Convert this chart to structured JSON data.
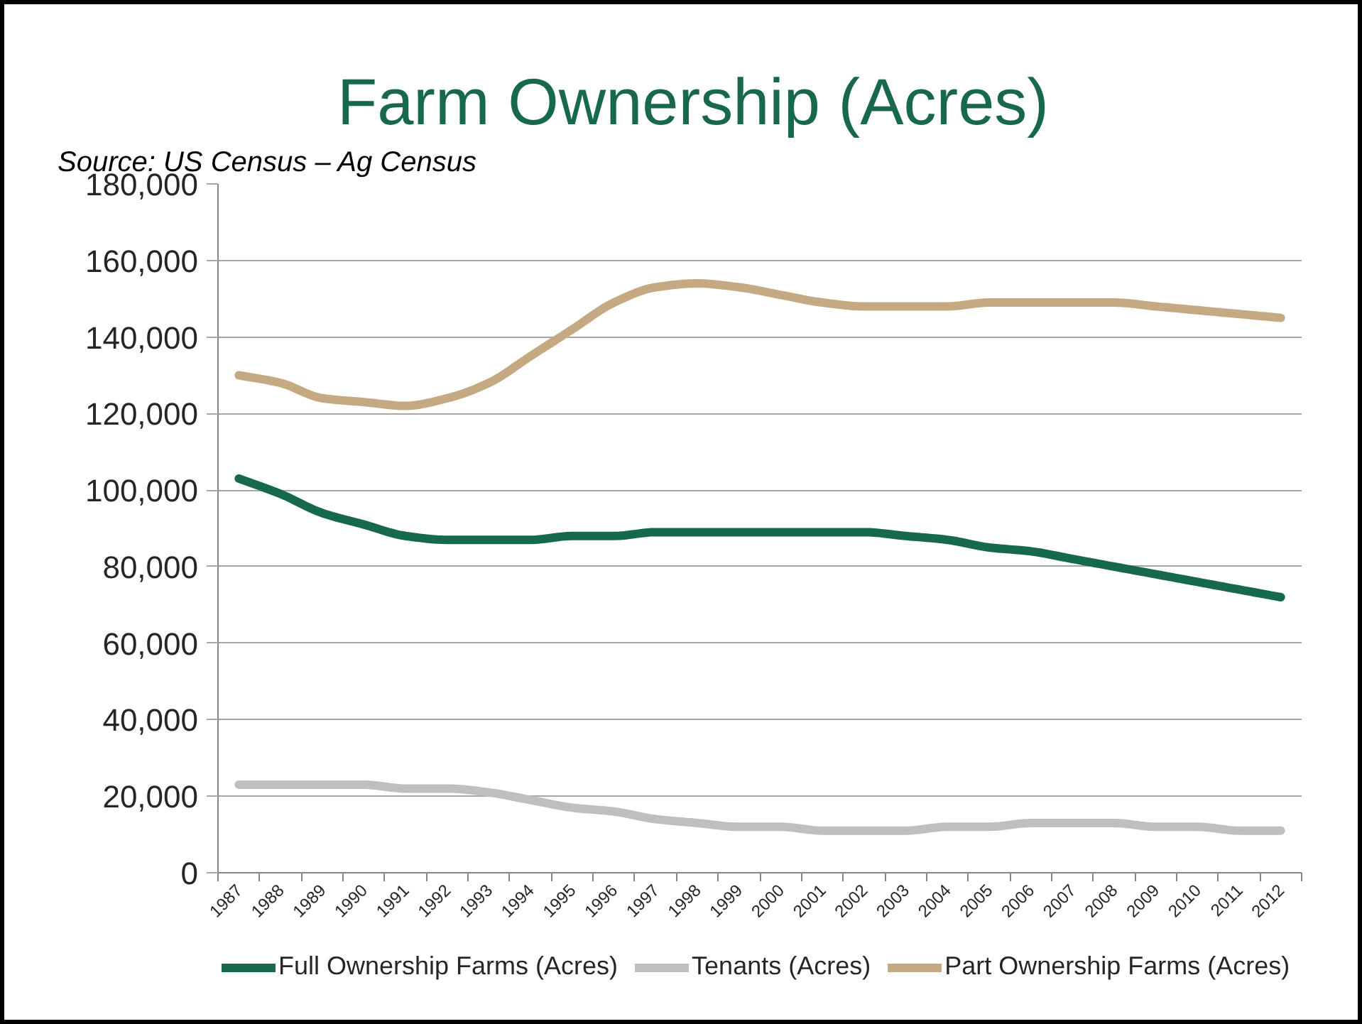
{
  "chart_data": {
    "type": "line",
    "title": "Farm Ownership (Acres)",
    "annotations": [
      "Source: US Census – Ag Census"
    ],
    "categories": [
      "1987",
      "1988",
      "1989",
      "1990",
      "1991",
      "1992",
      "1993",
      "1994",
      "1995",
      "1996",
      "1997",
      "1998",
      "1999",
      "2000",
      "2001",
      "2002",
      "2003",
      "2004",
      "2005",
      "2006",
      "2007",
      "2008",
      "2009",
      "2010",
      "2011",
      "2012"
    ],
    "series": [
      {
        "name": "Full Ownership Farms (Acres)",
        "color": "#16694b",
        "values": [
          103000,
          99000,
          94000,
          91000,
          88000,
          87000,
          87000,
          87000,
          88000,
          88000,
          89000,
          89000,
          89000,
          89000,
          89000,
          89000,
          88000,
          87000,
          85000,
          84000,
          82000,
          80000,
          78000,
          76000,
          74000,
          72000
        ]
      },
      {
        "name": "Tenants (Acres)",
        "color": "#bfbfbf",
        "values": [
          23000,
          23000,
          23000,
          23000,
          22000,
          22000,
          21000,
          19000,
          17000,
          16000,
          14000,
          13000,
          12000,
          12000,
          11000,
          11000,
          11000,
          12000,
          12000,
          13000,
          13000,
          13000,
          12000,
          12000,
          11000,
          11000
        ]
      },
      {
        "name": "Part Ownership Farms (Acres)",
        "color": "#c4a982",
        "values": [
          130000,
          128000,
          124000,
          123000,
          122000,
          124000,
          128000,
          135000,
          142000,
          149000,
          153000,
          154000,
          153000,
          151000,
          149000,
          148000,
          148000,
          148000,
          149000,
          149000,
          149000,
          149000,
          148000,
          147000,
          146000,
          145000
        ]
      }
    ],
    "ylim": [
      0,
      180000
    ],
    "yticks": [
      0,
      {
        "value": 20000,
        "label": "20,000"
      },
      {
        "value": 40000,
        "label": "40,000"
      },
      {
        "value": 60000,
        "label": "60,000"
      },
      {
        "value": 80000,
        "label": "80,000"
      },
      {
        "value": 100000,
        "label": "100,000"
      },
      {
        "value": 120000,
        "label": "120,000"
      },
      {
        "value": 140000,
        "label": "140,000"
      },
      {
        "value": 160000,
        "label": "160,000"
      },
      {
        "value": 180000,
        "label": "180,000"
      }
    ],
    "grid": "y",
    "legend": "bottom"
  }
}
